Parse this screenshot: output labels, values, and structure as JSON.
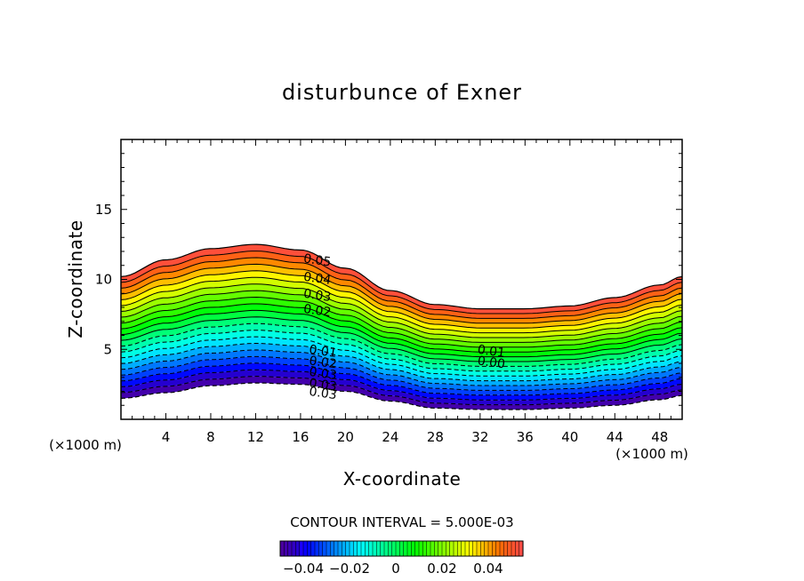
{
  "chart_data": {
    "type": "contour",
    "title": "disturbunce of Exner",
    "xlabel": "X-coordinate",
    "ylabel": "Z-coordinate",
    "x_unit_left": "(×1000 m)",
    "x_unit_right": "(×1000 m)",
    "xlim": [
      0,
      50
    ],
    "ylim": [
      0,
      20
    ],
    "xticks": [
      4,
      8,
      12,
      16,
      20,
      24,
      28,
      32,
      36,
      40,
      44,
      48
    ],
    "yticks": [
      5,
      10,
      15
    ],
    "contour_interval_text": "CONTOUR INTERVAL = 5.000E-03",
    "contour_interval": 0.005,
    "level_min": -0.05,
    "level_max": 0.055,
    "terrain": {
      "description": "wavy lower and upper boundaries of the filled region",
      "x": [
        0,
        4,
        8,
        12,
        16,
        20,
        24,
        28,
        32,
        36,
        40,
        44,
        48,
        50
      ],
      "bottom_z": [
        1.5,
        1.9,
        2.4,
        2.6,
        2.5,
        2.0,
        1.3,
        0.8,
        0.7,
        0.7,
        0.8,
        1.0,
        1.4,
        1.7
      ],
      "top_z": [
        10.2,
        11.4,
        12.2,
        12.5,
        12.1,
        10.8,
        9.2,
        8.2,
        7.9,
        7.9,
        8.1,
        8.7,
        9.6,
        10.2
      ]
    },
    "contour_labels_upper": [
      {
        "text": "0.05",
        "x": 17.5,
        "z": 11.4
      },
      {
        "text": "0.04",
        "x": 17.5,
        "z": 10.1
      },
      {
        "text": "0.03",
        "x": 17.5,
        "z": 8.9
      },
      {
        "text": "0.02",
        "x": 17.5,
        "z": 7.8
      },
      {
        "text": "0.01",
        "x": 33.0,
        "z": 4.9
      },
      {
        "text": "0.00",
        "x": 33.0,
        "z": 4.1
      }
    ],
    "contour_labels_lower": [
      {
        "text": "0.01",
        "x": 18.0,
        "z": 4.9
      },
      {
        "text": "0.02",
        "x": 18.0,
        "z": 4.1
      },
      {
        "text": "0.03",
        "x": 18.0,
        "z": 3.3
      },
      {
        "text": "0.03",
        "x": 18.0,
        "z": 2.5
      },
      {
        "text": "0.03",
        "x": 18.0,
        "z": 1.9
      }
    ],
    "colorbar": {
      "ticks": [
        -0.04,
        -0.02,
        0,
        0.02,
        0.04
      ],
      "tick_labels": [
        "−0.04",
        "−0.02",
        "0",
        "0.02",
        "0.04"
      ],
      "min": -0.05,
      "max": 0.055
    }
  }
}
